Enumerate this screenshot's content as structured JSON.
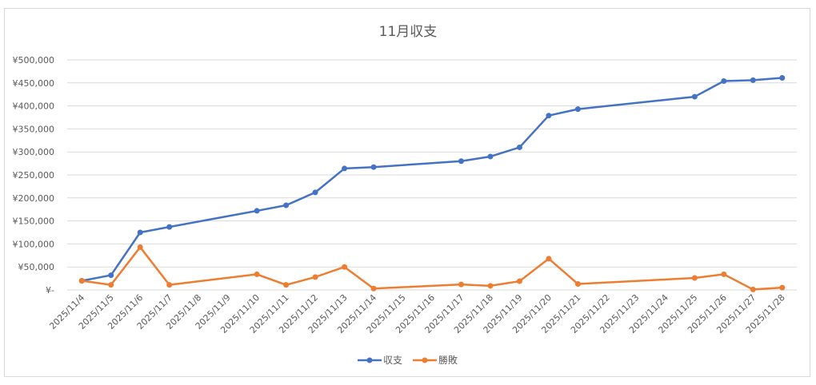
{
  "chart_data": {
    "type": "line",
    "title": "11月収支",
    "xlabel": "",
    "ylabel": "",
    "categories": [
      "2025/11/4",
      "2025/11/5",
      "2025/11/6",
      "2025/11/7",
      "2025/11/8",
      "2025/11/9",
      "2025/11/10",
      "2025/11/11",
      "2025/11/12",
      "2025/11/13",
      "2025/11/14",
      "2025/11/15",
      "2025/11/16",
      "2025/11/17",
      "2025/11/18",
      "2025/11/19",
      "2025/11/20",
      "2025/11/21",
      "2025/11/22",
      "2025/11/23",
      "2025/11/24",
      "2025/11/25",
      "2025/11/26",
      "2025/11/27",
      "2025/11/28"
    ],
    "ylim": [
      0,
      500000
    ],
    "yticks": [
      {
        "value": 0,
        "label": "¥-"
      },
      {
        "value": 50000,
        "label": "¥50,000"
      },
      {
        "value": 100000,
        "label": "¥100,000"
      },
      {
        "value": 150000,
        "label": "¥150,000"
      },
      {
        "value": 200000,
        "label": "¥200,000"
      },
      {
        "value": 250000,
        "label": "¥250,000"
      },
      {
        "value": 300000,
        "label": "¥300,000"
      },
      {
        "value": 350000,
        "label": "¥350,000"
      },
      {
        "value": 400000,
        "label": "¥400,000"
      },
      {
        "value": 450000,
        "label": "¥450,000"
      },
      {
        "value": 500000,
        "label": "¥500,000"
      }
    ],
    "grid": true,
    "legend_position": "bottom",
    "series": [
      {
        "name": "収支",
        "color": "#4472c4",
        "points": [
          {
            "x": "2025/11/4",
            "y": 20000
          },
          {
            "x": "2025/11/5",
            "y": 32000
          },
          {
            "x": "2025/11/6",
            "y": 125000
          },
          {
            "x": "2025/11/7",
            "y": 137000
          },
          {
            "x": "2025/11/10",
            "y": 172000
          },
          {
            "x": "2025/11/11",
            "y": 184000
          },
          {
            "x": "2025/11/12",
            "y": 212000
          },
          {
            "x": "2025/11/13",
            "y": 264000
          },
          {
            "x": "2025/11/14",
            "y": 267000
          },
          {
            "x": "2025/11/17",
            "y": 280000
          },
          {
            "x": "2025/11/18",
            "y": 290000
          },
          {
            "x": "2025/11/19",
            "y": 310000
          },
          {
            "x": "2025/11/20",
            "y": 379000
          },
          {
            "x": "2025/11/21",
            "y": 393000
          },
          {
            "x": "2025/11/25",
            "y": 420000
          },
          {
            "x": "2025/11/26",
            "y": 454000
          },
          {
            "x": "2025/11/27",
            "y": 456000
          },
          {
            "x": "2025/11/28",
            "y": 461000
          }
        ]
      },
      {
        "name": "勝敗",
        "color": "#ed7d31",
        "points": [
          {
            "x": "2025/11/4",
            "y": 20000
          },
          {
            "x": "2025/11/5",
            "y": 11000
          },
          {
            "x": "2025/11/6",
            "y": 93000
          },
          {
            "x": "2025/11/7",
            "y": 11000
          },
          {
            "x": "2025/11/10",
            "y": 34000
          },
          {
            "x": "2025/11/11",
            "y": 11000
          },
          {
            "x": "2025/11/12",
            "y": 28000
          },
          {
            "x": "2025/11/13",
            "y": 50000
          },
          {
            "x": "2025/11/14",
            "y": 3000
          },
          {
            "x": "2025/11/17",
            "y": 12000
          },
          {
            "x": "2025/11/18",
            "y": 9000
          },
          {
            "x": "2025/11/19",
            "y": 19000
          },
          {
            "x": "2025/11/20",
            "y": 68000
          },
          {
            "x": "2025/11/21",
            "y": 13000
          },
          {
            "x": "2025/11/25",
            "y": 26000
          },
          {
            "x": "2025/11/26",
            "y": 34000
          },
          {
            "x": "2025/11/27",
            "y": 1000
          },
          {
            "x": "2025/11/28",
            "y": 5000
          }
        ]
      }
    ]
  }
}
